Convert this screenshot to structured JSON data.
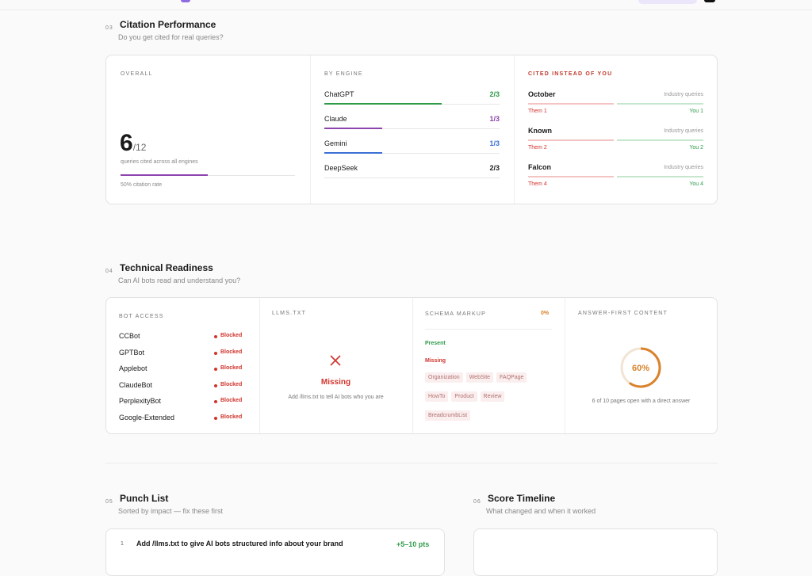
{
  "sections": [
    {
      "number": "03",
      "title": "Citation Performance",
      "subtitle": "Do you get cited for real queries?"
    },
    {
      "number": "04",
      "title": "Technical Readiness",
      "subtitle": "Can AI bots read and understand you?"
    },
    {
      "number": "05",
      "title": "Punch List",
      "subtitle": "Sorted by impact — fix these first"
    },
    {
      "number": "06",
      "title": "Score Timeline",
      "subtitle": "What changed and when it worked"
    }
  ],
  "overall": {
    "label": "OVERALL",
    "cited": "6",
    "total": "/12",
    "caption": "queries cited across all engines",
    "rate": "50% citation rate"
  },
  "engines": {
    "label": "BY ENGINE",
    "items": [
      {
        "name": "ChatGPT",
        "score": "2/3",
        "color": "#2e9a4a"
      },
      {
        "name": "Claude",
        "score": "1/3",
        "color": "#8e44ad"
      },
      {
        "name": "Gemini",
        "score": "1/3",
        "color": "#3b6fd4"
      },
      {
        "name": "DeepSeek",
        "score": "2/3",
        "color": "#222222"
      }
    ]
  },
  "competitors": {
    "label": "CITED INSTEAD OF YOU",
    "items": [
      {
        "name": "October",
        "context": "Industry queries",
        "them": "Them 1",
        "you": "You 1"
      },
      {
        "name": "Known",
        "context": "Industry queries",
        "them": "Them 2",
        "you": "You 2"
      },
      {
        "name": "Falcon",
        "context": "Industry queries",
        "them": "Them 4",
        "you": "You 4"
      }
    ]
  },
  "bot_access": {
    "label": "BOT ACCESS",
    "bots": [
      {
        "name": "CCBot",
        "status": "Blocked"
      },
      {
        "name": "GPTBot",
        "status": "Blocked"
      },
      {
        "name": "Applebot",
        "status": "Blocked"
      },
      {
        "name": "ClaudeBot",
        "status": "Blocked"
      },
      {
        "name": "PerplexityBot",
        "status": "Blocked"
      },
      {
        "name": "Google-Extended",
        "status": "Blocked"
      }
    ]
  },
  "llms_txt": {
    "label": "LLMS.TXT",
    "status": "Missing",
    "hint": "Add /llms.txt to tell AI bots who you are"
  },
  "schema": {
    "label": "SCHEMA MARKUP",
    "score": "0%",
    "present_label": "Present",
    "missing_label": "Missing",
    "missing": [
      "Organization",
      "WebSite",
      "FAQPage",
      "HowTo",
      "Product",
      "Review",
      "BreadcrumbList"
    ]
  },
  "answer_first": {
    "label": "ANSWER-FIRST CONTENT",
    "percent": {
      "value": 60,
      "label": "60%"
    },
    "caption": "6 of 10 pages open with a direct answer"
  },
  "punch_list": [
    {
      "rank": "1",
      "text": "Add /llms.txt to give AI bots structured info about your brand",
      "impact": "+5–10 pts"
    }
  ]
}
